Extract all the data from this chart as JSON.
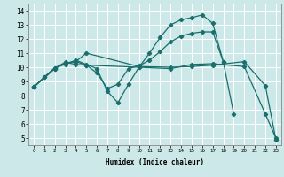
{
  "title": "",
  "xlabel": "Humidex (Indice chaleur)",
  "bg_color": "#cce8e8",
  "grid_color": "#ffffff",
  "line_color": "#1a6e6e",
  "xlim": [
    -0.5,
    23.5
  ],
  "ylim": [
    4.5,
    14.5
  ],
  "xticks": [
    0,
    1,
    2,
    3,
    4,
    5,
    6,
    7,
    8,
    9,
    10,
    11,
    12,
    13,
    14,
    15,
    16,
    17,
    18,
    19,
    20,
    21,
    22,
    23
  ],
  "yticks": [
    5,
    6,
    7,
    8,
    9,
    10,
    11,
    12,
    13,
    14
  ],
  "line1_x": [
    0,
    1,
    2,
    3,
    4,
    5,
    6,
    7,
    8,
    9,
    10,
    11,
    12,
    13,
    14,
    15,
    16,
    17,
    18,
    19
  ],
  "line1_y": [
    8.6,
    9.3,
    9.95,
    10.2,
    10.5,
    10.2,
    9.9,
    8.3,
    7.5,
    8.8,
    10.0,
    11.0,
    12.1,
    13.0,
    13.35,
    13.5,
    13.7,
    13.1,
    10.4,
    6.7
  ],
  "line2_x": [
    0,
    1,
    2,
    3,
    4,
    5,
    6,
    7,
    8,
    9,
    10,
    11,
    12,
    13,
    14,
    15,
    16,
    17,
    18
  ],
  "line2_y": [
    8.6,
    9.3,
    9.95,
    10.35,
    10.2,
    10.15,
    9.6,
    8.5,
    8.8,
    9.9,
    10.1,
    10.5,
    11.1,
    11.8,
    12.2,
    12.4,
    12.5,
    12.5,
    10.4
  ],
  "line3_x": [
    0,
    2,
    3,
    4,
    5,
    10,
    13,
    15,
    17,
    20,
    22,
    23
  ],
  "line3_y": [
    8.6,
    9.9,
    10.3,
    10.4,
    11.0,
    10.05,
    10.0,
    10.05,
    10.15,
    10.4,
    8.7,
    4.9
  ],
  "line4_x": [
    0,
    2,
    3,
    4,
    5,
    10,
    13,
    15,
    17,
    20,
    22,
    23
  ],
  "line4_y": [
    8.6,
    9.9,
    10.3,
    10.4,
    10.15,
    10.0,
    9.9,
    10.2,
    10.25,
    10.05,
    6.7,
    5.0
  ]
}
